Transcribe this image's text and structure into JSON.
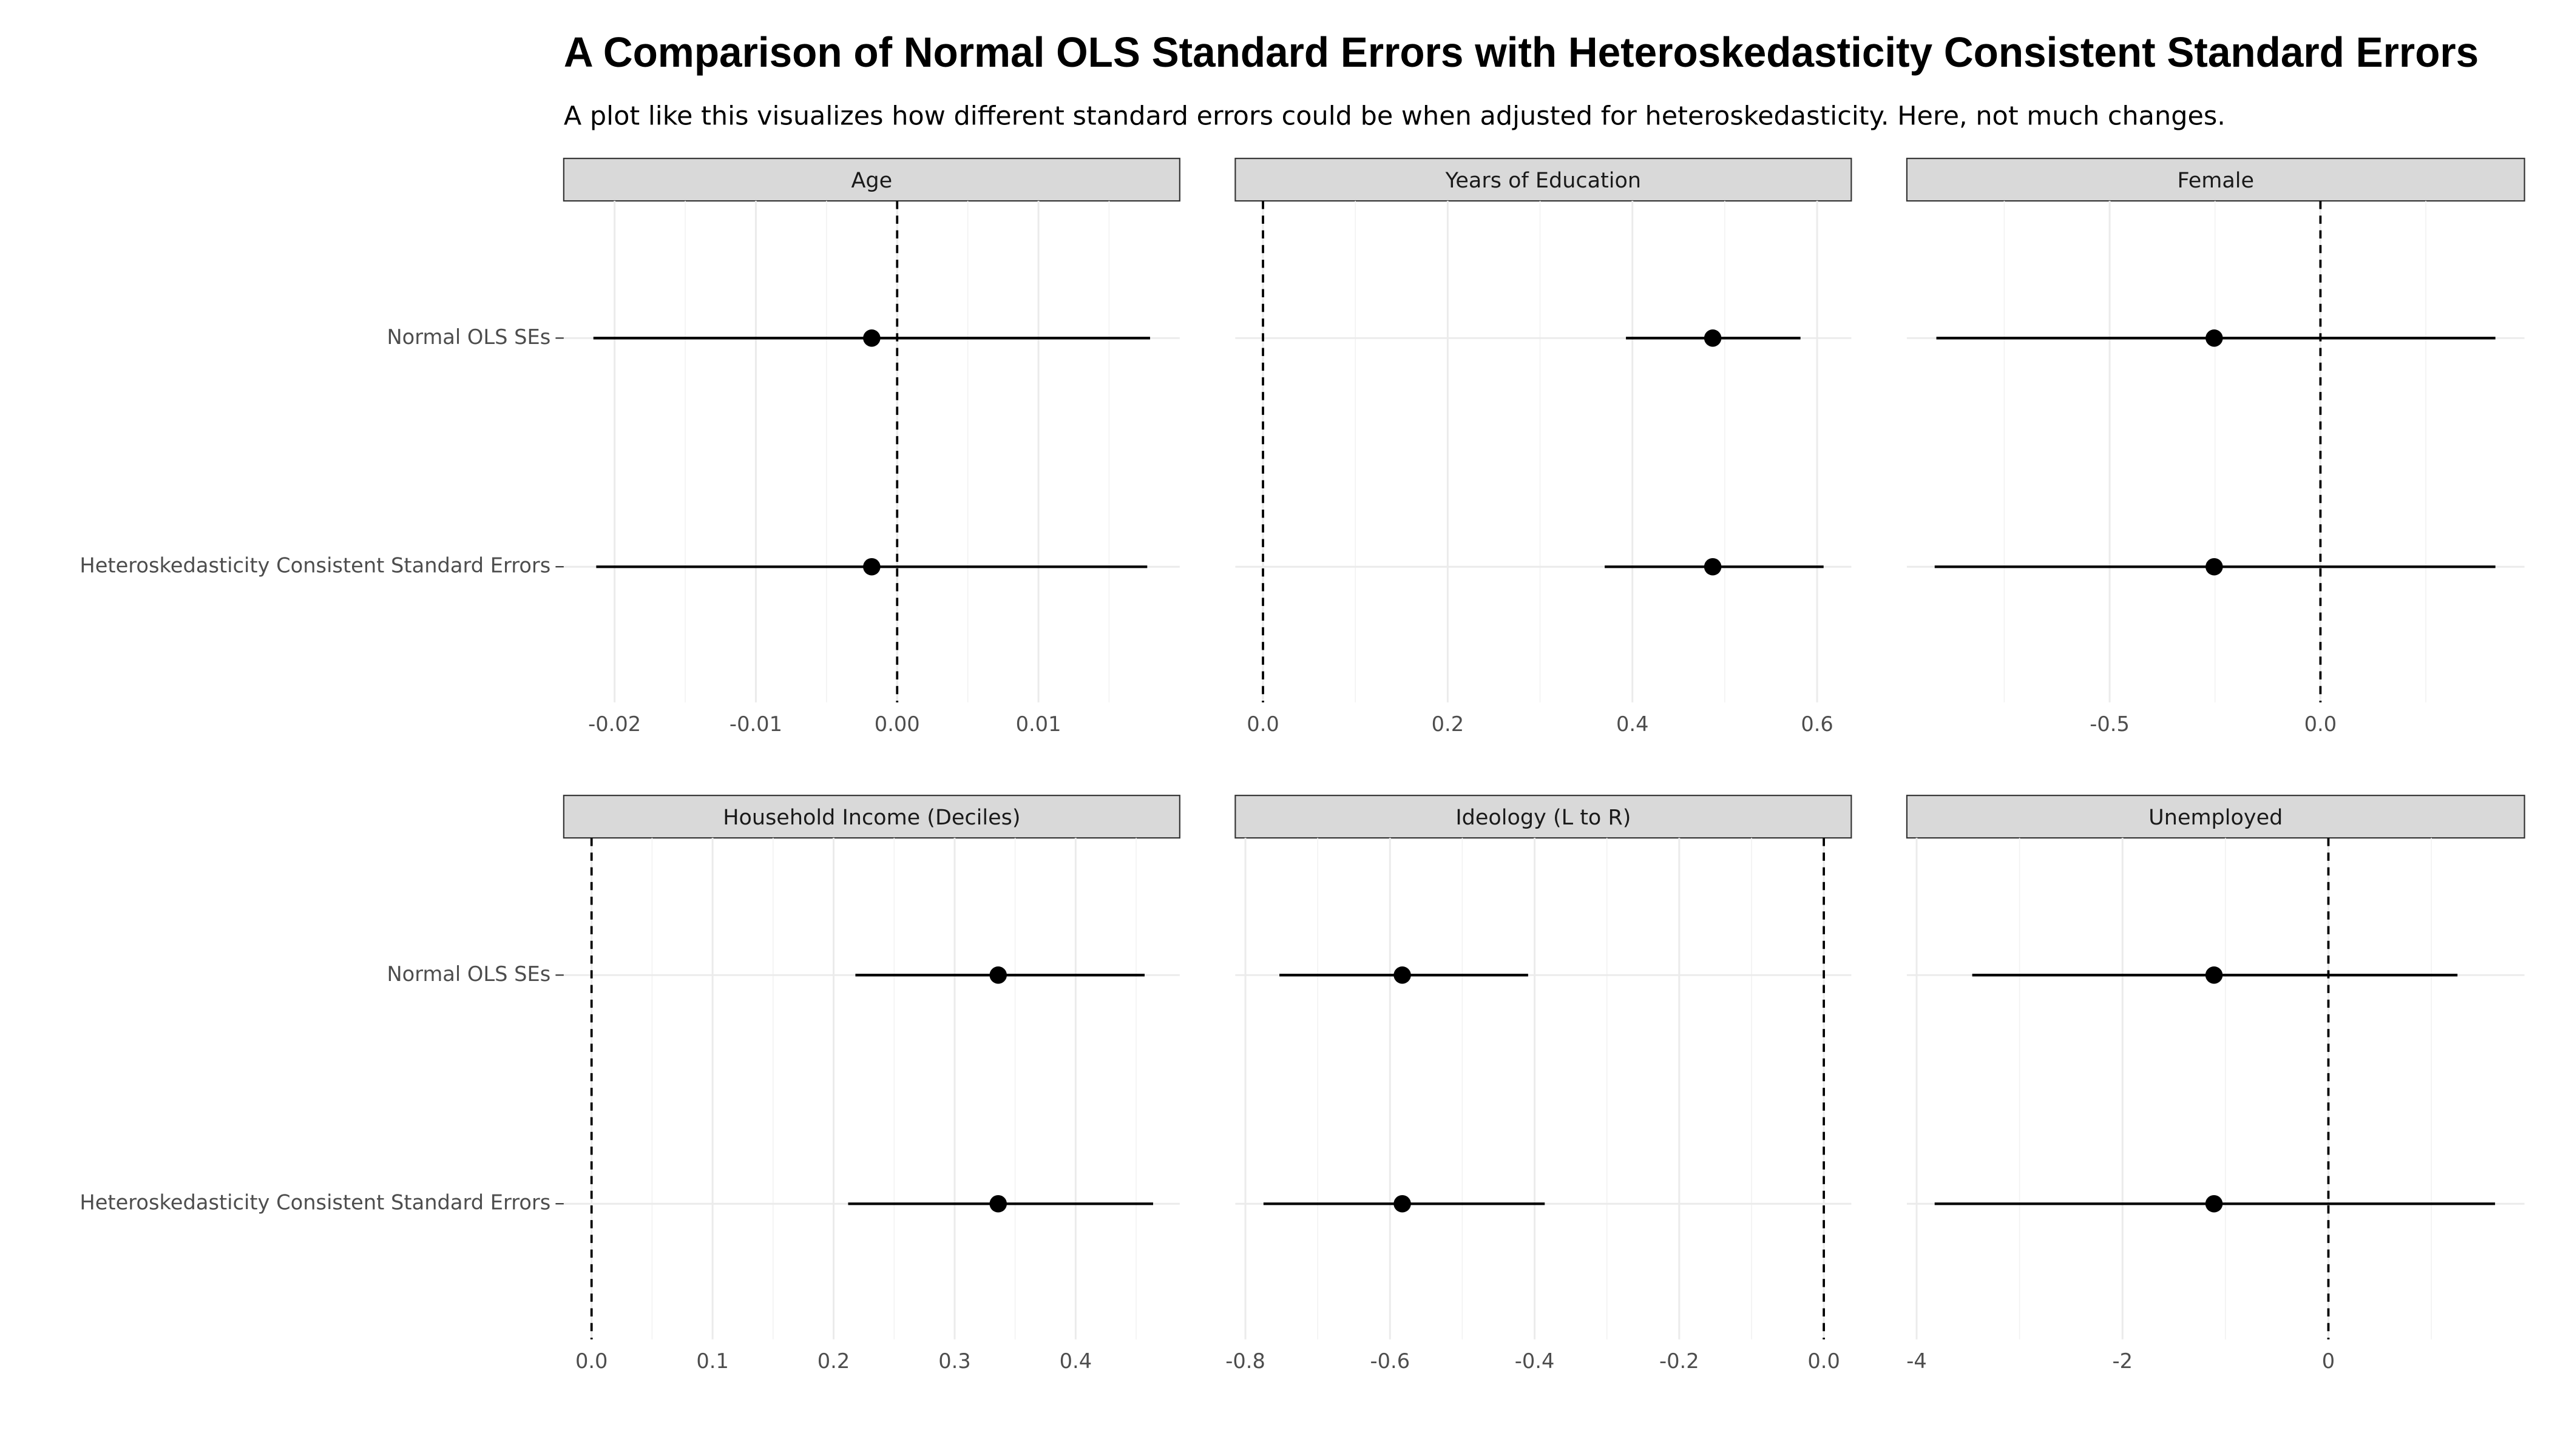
{
  "title": "A Comparison of Normal OLS Standard Errors with Heteroskedasticity Consistent Standard Errors",
  "subtitle": "A plot like this visualizes how different standard errors could be when adjusted for heteroskedasticity. Here, not much changes.",
  "categories": [
    "Normal OLS SEs",
    "Heteroskedasticity Consistent Standard Errors"
  ],
  "chart_data": [
    {
      "type": "dotwhisker",
      "title": "Age",
      "values": [
        -0.0018,
        -0.0018
      ],
      "ci_low": [
        -0.0215,
        -0.0213
      ],
      "ci_high": [
        0.0179,
        0.0177
      ],
      "reference_line": 0,
      "color": "#000000",
      "grid": true,
      "xlim": [
        -0.0236,
        0.02
      ],
      "xticks": [
        -0.02,
        -0.01,
        {
          "value": 0,
          "label": "0.00"
        },
        0.01
      ]
    },
    {
      "type": "dotwhisker",
      "title": "Years of Education",
      "values": [
        0.487,
        0.487
      ],
      "ci_low": [
        0.393,
        0.37
      ],
      "ci_high": [
        0.582,
        0.607
      ],
      "reference_line": 0,
      "color": "#000000",
      "grid": true,
      "xlim": [
        -0.03,
        0.637
      ],
      "xticks": [
        {
          "value": 0,
          "label": "0.0"
        },
        0.2,
        0.4,
        0.6
      ]
    },
    {
      "type": "dotwhisker",
      "title": "Female",
      "values": [
        -0.252,
        -0.252
      ],
      "ci_low": [
        -0.911,
        -0.915
      ],
      "ci_high": [
        0.415,
        0.415
      ],
      "reference_line": 0,
      "color": "#000000",
      "grid": true,
      "xlim": [
        -0.981,
        0.484
      ],
      "xticks": [
        -0.5,
        {
          "value": 0,
          "label": "0.0"
        }
      ]
    },
    {
      "type": "dotwhisker",
      "title": "Household Income (Deciles)",
      "values": [
        0.336,
        0.336
      ],
      "ci_low": [
        0.218,
        0.212
      ],
      "ci_high": [
        0.457,
        0.464
      ],
      "reference_line": 0,
      "color": "#000000",
      "grid": true,
      "xlim": [
        -0.023,
        0.486
      ],
      "xticks": [
        {
          "value": 0,
          "label": "0.0"
        },
        0.1,
        0.2,
        0.3,
        0.4
      ]
    },
    {
      "type": "dotwhisker",
      "title": "Ideology (L to R)",
      "values": [
        -0.583,
        -0.583
      ],
      "ci_low": [
        -0.753,
        -0.775
      ],
      "ci_high": [
        -0.409,
        -0.386
      ],
      "reference_line": 0,
      "color": "#000000",
      "grid": true,
      "xlim": [
        -0.814,
        0.038
      ],
      "xticks": [
        -0.8,
        -0.6,
        -0.4,
        -0.2,
        {
          "value": 0,
          "label": "0.0"
        }
      ]
    },
    {
      "type": "dotwhisker",
      "title": "Unemployed",
      "values": [
        -1.111,
        -1.111
      ],
      "ci_low": [
        -3.46,
        -3.825
      ],
      "ci_high": [
        1.254,
        1.619
      ],
      "reference_line": 0,
      "color": "#000000",
      "grid": true,
      "xlim": [
        -4.095,
        1.905
      ],
      "xticks": [
        -4,
        -2,
        0
      ]
    }
  ]
}
